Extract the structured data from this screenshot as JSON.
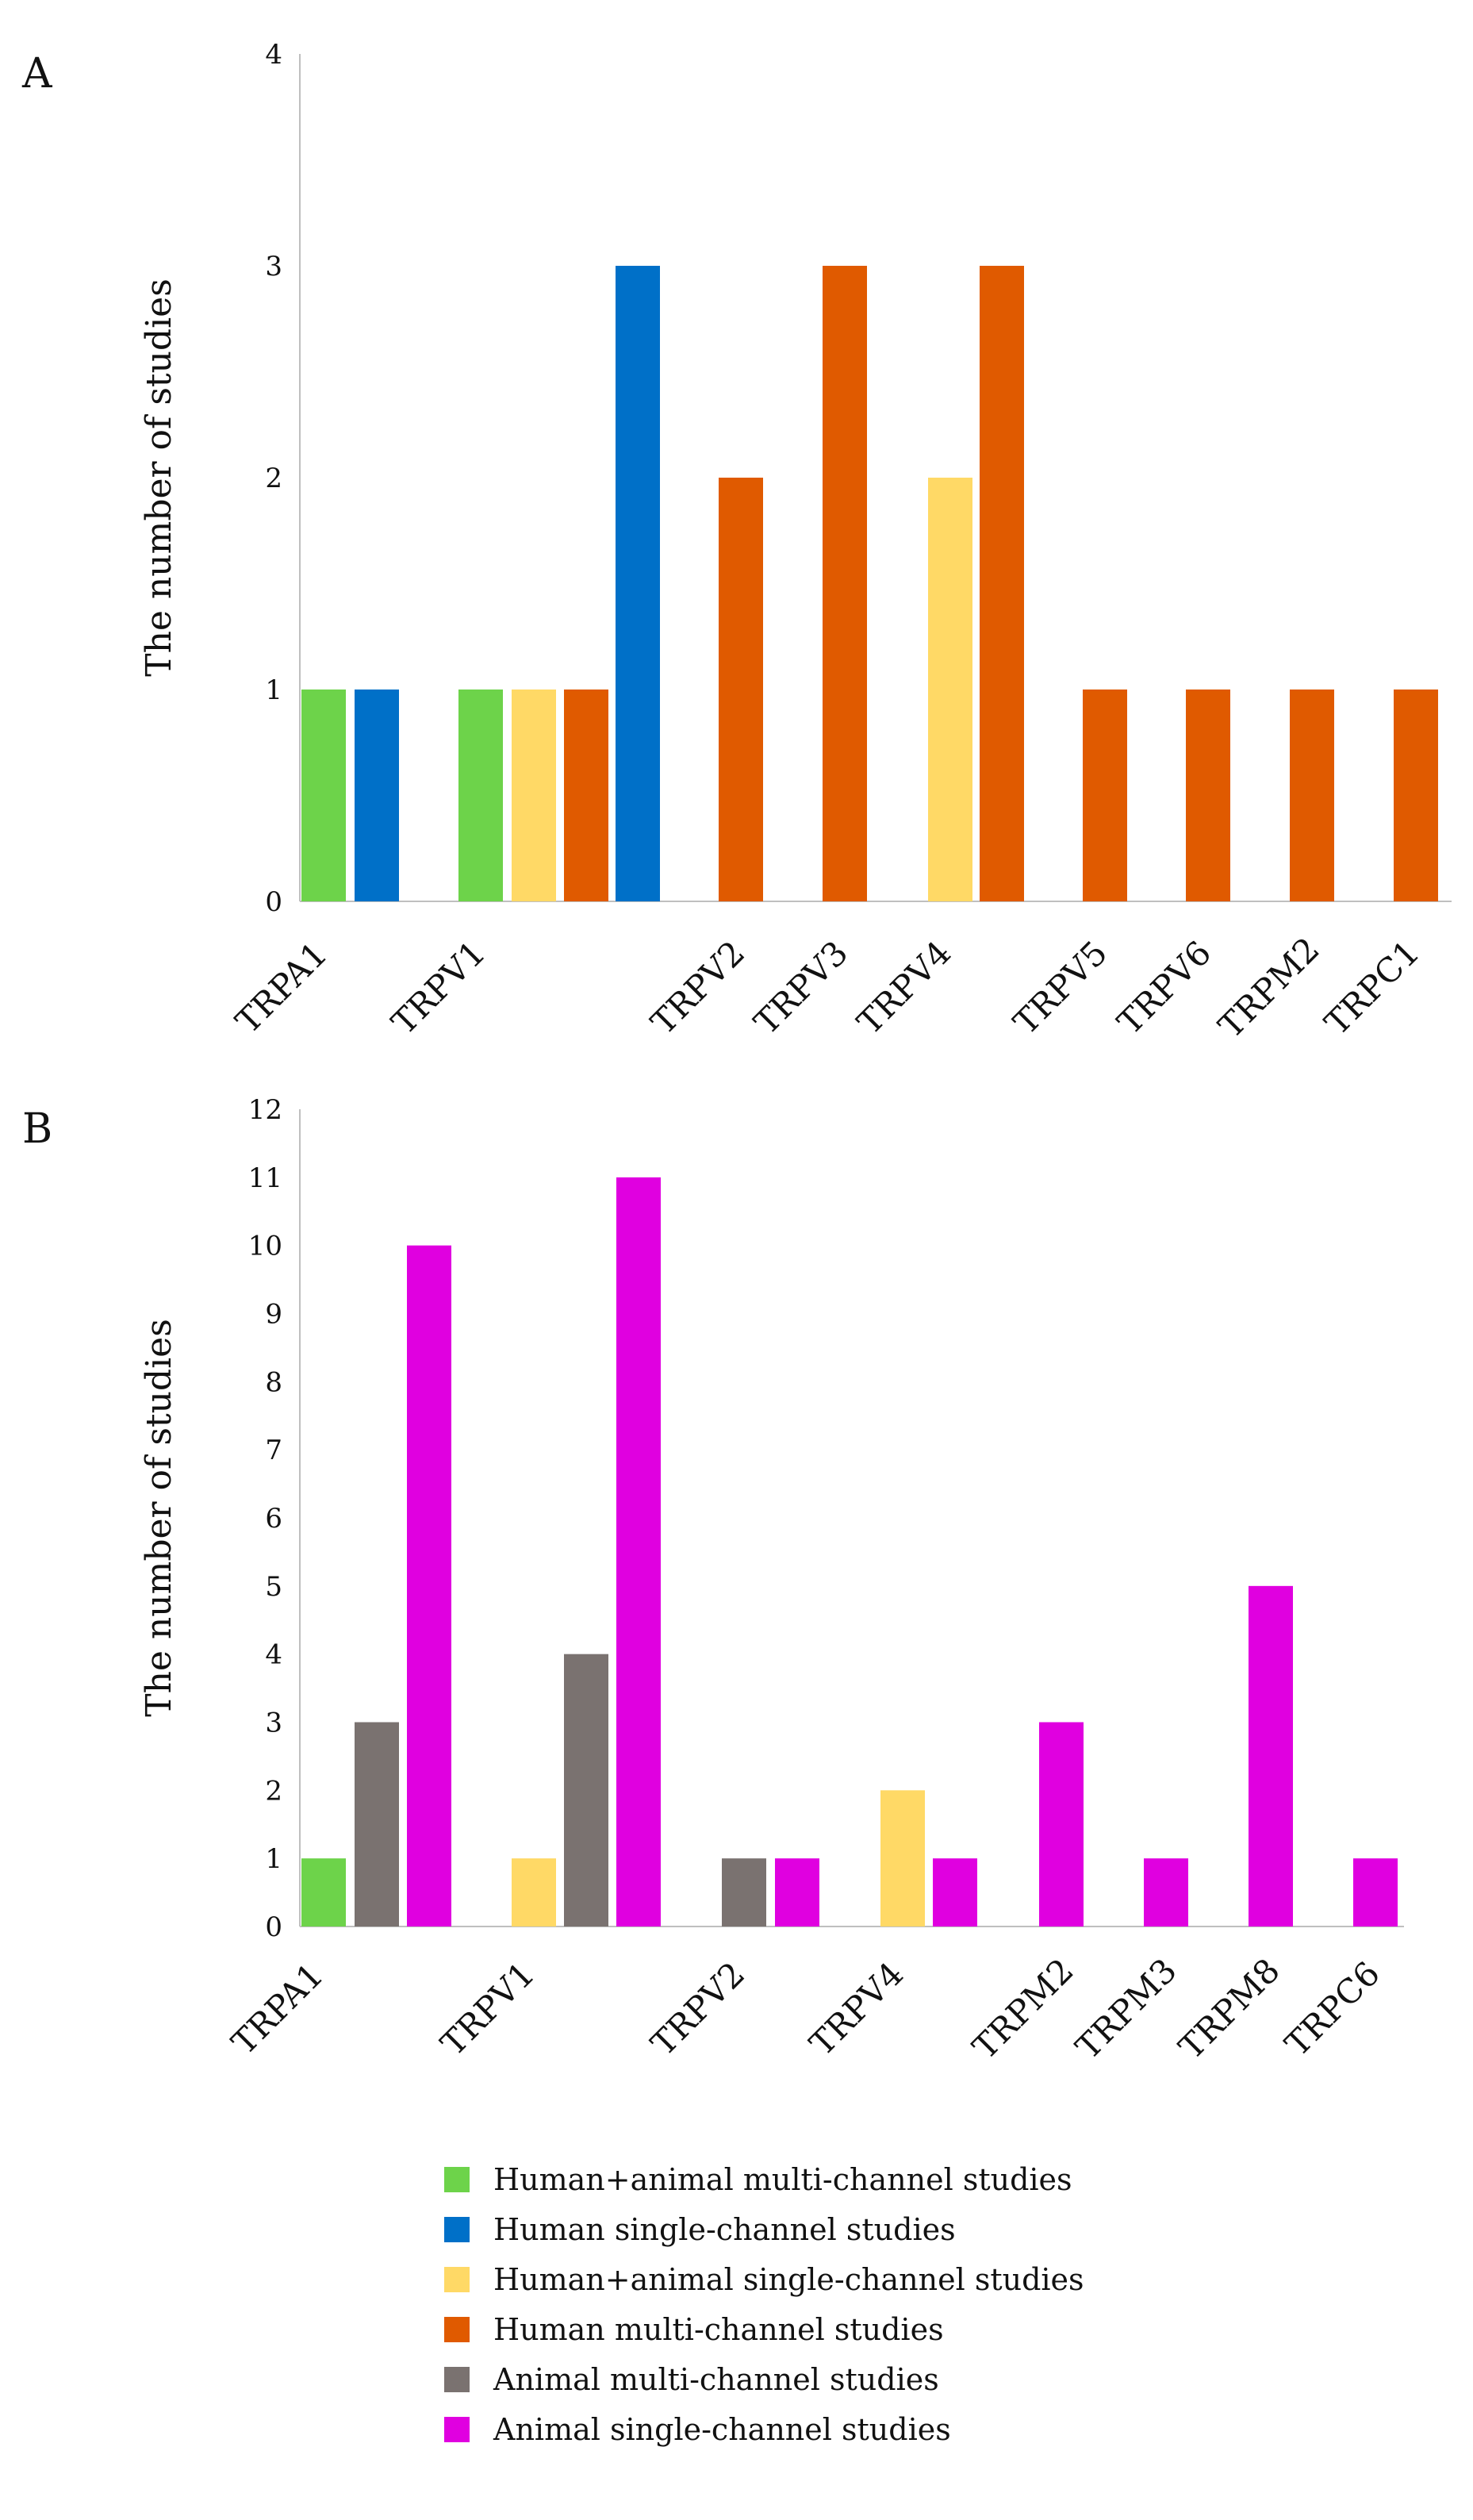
{
  "chart_data": [
    {
      "type": "bar",
      "panel_label": "A",
      "ylabel": "The number of studies",
      "ylim": [
        0,
        4
      ],
      "yticks": [
        "0",
        "1",
        "2",
        "3",
        "4"
      ],
      "category_labels": [
        "TRPA1",
        "TRPV1",
        "TRPV2",
        "TRPV3",
        "TRPV4",
        "TRPV5",
        "TRPV6",
        "TRPM2",
        "TRPC1"
      ],
      "bars": [
        {
          "category": "TRPA1",
          "series": "Human+animal multi-channel studies",
          "value": 1
        },
        {
          "category": "TRPA1",
          "series": "Human single-channel studies",
          "value": 1
        },
        {
          "category": "TRPV1",
          "series": "Human+animal multi-channel studies",
          "value": 1
        },
        {
          "category": "TRPV1",
          "series": "Human+animal single-channel studies",
          "value": 1
        },
        {
          "category": "TRPV1",
          "series": "Human multi-channel studies",
          "value": 1
        },
        {
          "category": "TRPV1",
          "series": "Human single-channel studies",
          "value": 3
        },
        {
          "category": "TRPV2",
          "series": "Human multi-channel studies",
          "value": 2
        },
        {
          "category": "TRPV3",
          "series": "Human multi-channel studies",
          "value": 3
        },
        {
          "category": "TRPV4",
          "series": "Human+animal single-channel studies",
          "value": 2
        },
        {
          "category": "TRPV4",
          "series": "Human multi-channel studies",
          "value": 3
        },
        {
          "category": "TRPV5",
          "series": "Human multi-channel studies",
          "value": 1
        },
        {
          "category": "TRPV6",
          "series": "Human multi-channel studies",
          "value": 1
        },
        {
          "category": "TRPM2",
          "series": "Human multi-channel studies",
          "value": 1
        },
        {
          "category": "TRPC1",
          "series": "Human multi-channel studies",
          "value": 1
        }
      ]
    },
    {
      "type": "bar",
      "panel_label": "B",
      "ylabel": "The number of studies",
      "ylim": [
        0,
        12
      ],
      "yticks": [
        "0",
        "1",
        "2",
        "3",
        "4",
        "5",
        "6",
        "7",
        "8",
        "9",
        "10",
        "11",
        "12"
      ],
      "category_labels": [
        "TRPA1",
        "TRPV1",
        "TRPV2",
        "TRPV4",
        "TRPM2",
        "TRPM3",
        "TRPM8",
        "TRPC6"
      ],
      "bars": [
        {
          "category": "TRPA1",
          "series": "Human+animal multi-channel studies",
          "value": 1
        },
        {
          "category": "TRPA1",
          "series": "Animal multi-channel studies",
          "value": 3
        },
        {
          "category": "TRPA1",
          "series": "Animal single-channel studies",
          "value": 10
        },
        {
          "category": "TRPV1",
          "series": "Human+animal single-channel studies",
          "value": 1
        },
        {
          "category": "TRPV1",
          "series": "Animal multi-channel studies",
          "value": 4
        },
        {
          "category": "TRPV1",
          "series": "Animal single-channel studies",
          "value": 11
        },
        {
          "category": "TRPV2",
          "series": "Animal multi-channel studies",
          "value": 1
        },
        {
          "category": "TRPV2",
          "series": "Animal single-channel studies",
          "value": 1
        },
        {
          "category": "TRPV4",
          "series": "Human+animal single-channel studies",
          "value": 2
        },
        {
          "category": "TRPV4",
          "series": "Animal single-channel studies",
          "value": 1
        },
        {
          "category": "TRPM2",
          "series": "Animal single-channel studies",
          "value": 3
        },
        {
          "category": "TRPM3",
          "series": "Animal single-channel studies",
          "value": 1
        },
        {
          "category": "TRPM8",
          "series": "Animal single-channel studies",
          "value": 5
        },
        {
          "category": "TRPC6",
          "series": "Animal single-channel studies",
          "value": 1
        }
      ]
    }
  ],
  "legend": [
    {
      "label": "Human+animal multi-channel studies",
      "color": "#6dd34a"
    },
    {
      "label": "Human single-channel studies",
      "color": "#0070c8"
    },
    {
      "label": "Human+animal single-channel studies",
      "color": "#ffd966"
    },
    {
      "label": "Human multi-channel studies",
      "color": "#e05a00"
    },
    {
      "label": "Animal multi-channel studies",
      "color": "#7a7270"
    },
    {
      "label": "Animal single-channel studies",
      "color": "#e000e0"
    }
  ]
}
